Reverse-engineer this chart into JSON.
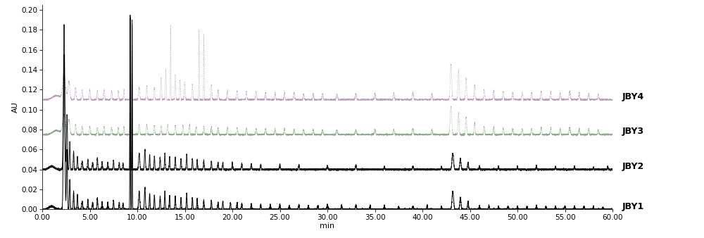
{
  "xlim": [
    0,
    60
  ],
  "ylim": [
    0,
    0.205
  ],
  "xlabel": "min",
  "ylabel": "AU",
  "xticks": [
    0.0,
    5.0,
    10.0,
    15.0,
    20.0,
    25.0,
    30.0,
    35.0,
    40.0,
    45.0,
    50.0,
    55.0,
    60.0
  ],
  "yticks": [
    0.0,
    0.02,
    0.04,
    0.06,
    0.08,
    0.1,
    0.12,
    0.14,
    0.16,
    0.18,
    0.2
  ],
  "labels": [
    "JBY4",
    "JBY3",
    "JBY2",
    "JBY1"
  ],
  "colors": [
    "#b8a0b8",
    "#90a890",
    "#1a1a1a",
    "#000000"
  ],
  "offsets": [
    0.11,
    0.075,
    0.04,
    0.0
  ],
  "background": "#ffffff",
  "figsize": [
    10.0,
    3.38
  ],
  "dpi": 100
}
